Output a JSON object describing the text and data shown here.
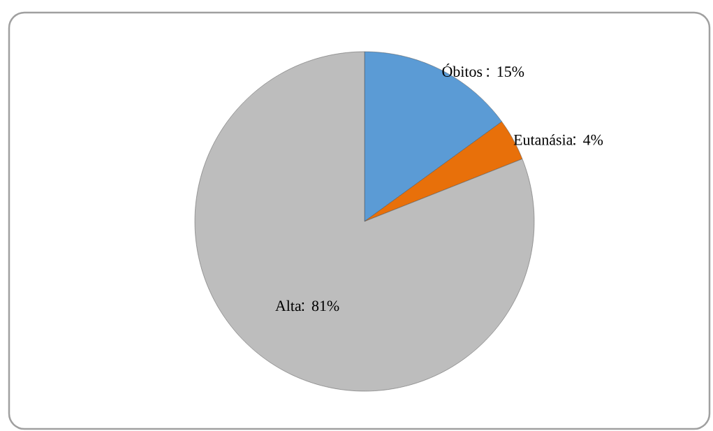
{
  "chart_data": {
    "type": "pie",
    "categories": [
      "Óbitos",
      "Eutanásia",
      "Alta"
    ],
    "values": [
      15,
      4,
      81
    ],
    "value_labels": [
      "15%",
      "4%",
      "81%"
    ],
    "colors": [
      "#5b9bd5",
      "#e8700a",
      "#bdbdbd"
    ]
  }
}
